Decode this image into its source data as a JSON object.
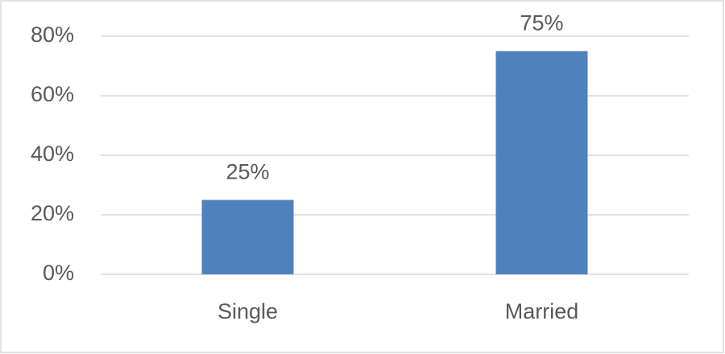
{
  "chart_data": {
    "type": "bar",
    "categories": [
      "Single",
      "Married"
    ],
    "values": [
      25,
      75
    ],
    "value_labels": [
      "25%",
      "75%"
    ],
    "color": "#4f81bd",
    "ylim": [
      0,
      80
    ],
    "yticks": [
      {
        "value": 0,
        "label": "0%"
      },
      {
        "value": 20,
        "label": "20%"
      },
      {
        "value": 40,
        "label": "40%"
      },
      {
        "value": 60,
        "label": "60%"
      },
      {
        "value": 80,
        "label": "80%"
      }
    ],
    "grid": true
  }
}
